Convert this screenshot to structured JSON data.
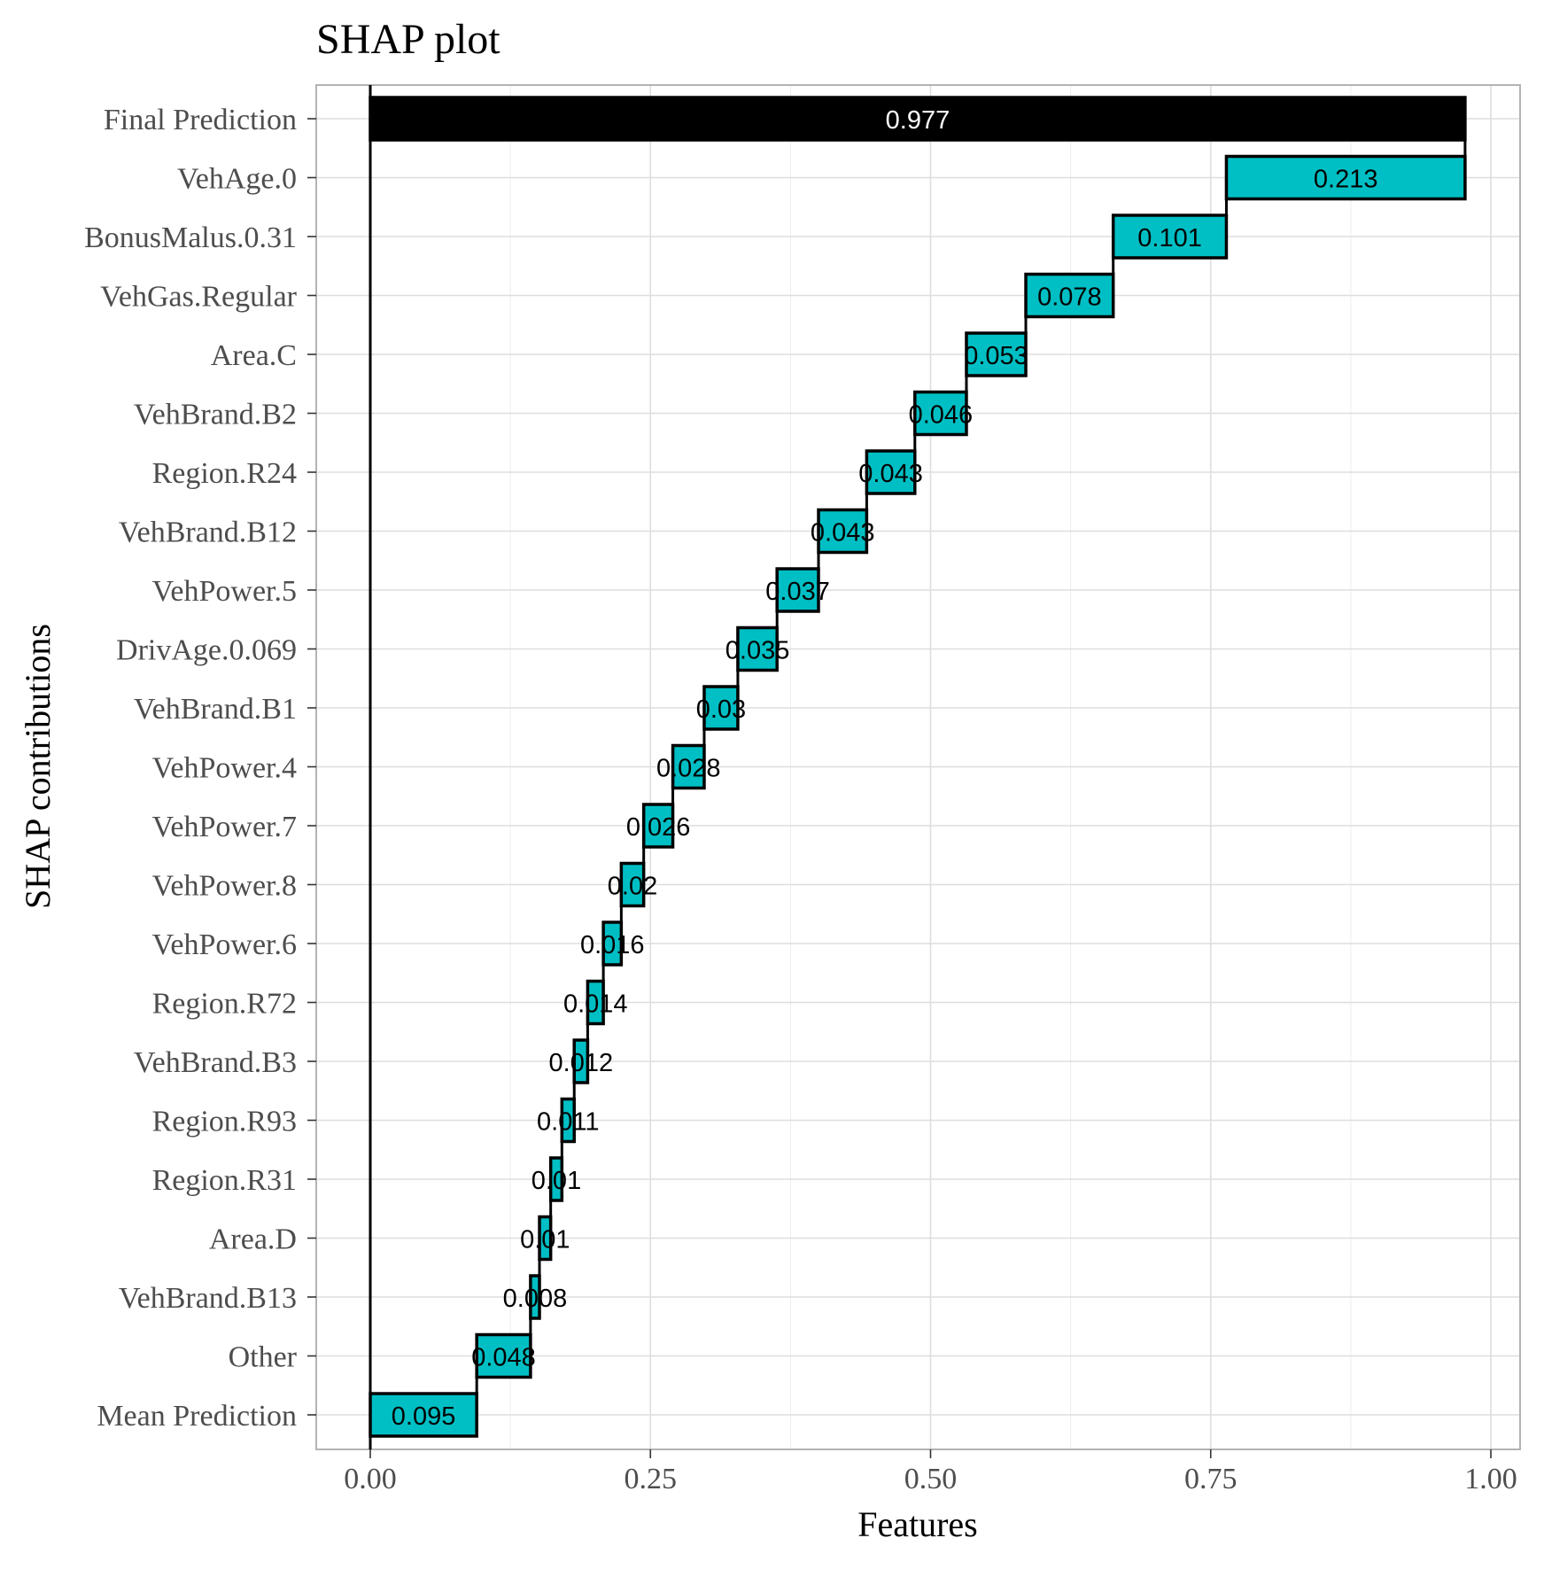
{
  "chart_data": {
    "type": "bar",
    "subtype": "waterfall",
    "title": "SHAP plot",
    "xlabel": "Features",
    "ylabel": "SHAP contributions",
    "xlim": [
      0.0,
      1.0
    ],
    "x_ticks": [
      "0.00",
      "0.25",
      "0.50",
      "0.75",
      "1.00"
    ],
    "grid": true,
    "legend": "none",
    "colors": {
      "bar": "#00BFC4",
      "final_bar": "#000000",
      "bar_border": "#000000",
      "grid": "#dedede",
      "panel_border": "#b3b3b3"
    },
    "categories": [
      "Final Prediction",
      "VehAge.0",
      "BonusMalus.0.31",
      "VehGas.Regular",
      "Area.C",
      "VehBrand.B2",
      "Region.R24",
      "VehBrand.B12",
      "VehPower.5",
      "DrivAge.0.069",
      "VehBrand.B1",
      "VehPower.4",
      "VehPower.7",
      "VehPower.8",
      "VehPower.6",
      "Region.R72",
      "VehBrand.B3",
      "Region.R93",
      "Region.R31",
      "Area.D",
      "VehBrand.B13",
      "Other",
      "Mean Prediction"
    ],
    "values": [
      0.977,
      0.213,
      0.101,
      0.078,
      0.053,
      0.046,
      0.043,
      0.043,
      0.037,
      0.035,
      0.03,
      0.028,
      0.026,
      0.02,
      0.016,
      0.014,
      0.012,
      0.011,
      0.01,
      0.01,
      0.008,
      0.048,
      0.095
    ],
    "labels": [
      "0.977",
      "0.213",
      "0.101",
      "0.078",
      "0.053",
      "0.046",
      "0.043",
      "0.043",
      "0.037",
      "0.035",
      "0.03",
      "0.028",
      "0.026",
      "0.02",
      "0.016",
      "0.014",
      "0.012",
      "0.011",
      "0.01",
      "0.01",
      "0.008",
      "0.048",
      "0.095"
    ]
  }
}
